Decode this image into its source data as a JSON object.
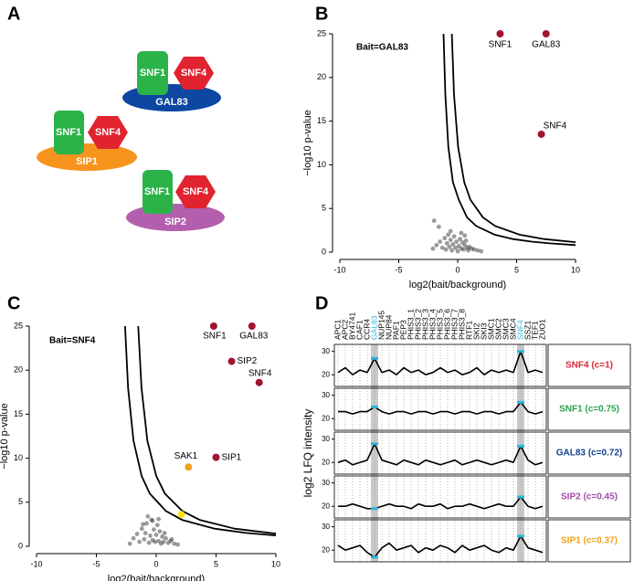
{
  "panel_labels": [
    "A",
    "B",
    "C",
    "D"
  ],
  "diagram": {
    "complexes": [
      {
        "subunits": [
          "SNF1",
          "SNF4"
        ],
        "scaffold": "GAL83"
      },
      {
        "subunits": [
          "SNF1",
          "SNF4"
        ],
        "scaffold": "SIP1"
      },
      {
        "subunits": [
          "SNF1",
          "SNF4"
        ],
        "scaffold": "SIP2"
      }
    ]
  },
  "chart_data": [
    {
      "type": "scatter",
      "annotation": "Bait=GAL83",
      "xlabel": "log2(bait/background)",
      "ylabel": "−log10 p-value",
      "xlim": [
        -10,
        10
      ],
      "ylim": [
        0,
        25
      ],
      "xticks": [
        -10,
        -5,
        0,
        5,
        10
      ],
      "yticks": [
        0,
        5,
        10,
        15,
        20,
        25
      ],
      "background": {
        "color": "#222222",
        "x": [
          -2.1,
          -1.8,
          -1.5,
          -1.3,
          -1.1,
          -1.0,
          -0.9,
          -0.8,
          -0.7,
          -0.6,
          -0.5,
          -0.4,
          -0.3,
          -0.2,
          -0.1,
          0,
          0.1,
          0.2,
          0.3,
          0.4,
          0.5,
          0.6,
          0.7,
          0.8,
          0.9,
          1.0,
          1.2,
          1.4,
          1.7,
          2.0,
          -0.6,
          0.3,
          -1.6,
          -2.0,
          0.6
        ],
        "y": [
          0.4,
          0.8,
          1.2,
          0.5,
          1.6,
          0.3,
          1.0,
          2.0,
          0.6,
          1.4,
          0.2,
          0.9,
          1.8,
          0.5,
          1.2,
          0.1,
          0.7,
          1.5,
          0.4,
          1.1,
          0.3,
          0.8,
          1.3,
          0.5,
          0.2,
          0.6,
          0.4,
          0.3,
          0.2,
          0.1,
          2.4,
          2.2,
          2.9,
          3.6,
          1.9
        ]
      },
      "curve_color": "#000000",
      "curves": [
        {
          "x": [
            -1.2,
            -1.05,
            -0.79,
            -0.4,
            0.09,
            0.78,
            1.56,
            3.13,
            4.69,
            6.26,
            7.83,
            10
          ],
          "y": [
            25,
            18,
            12,
            8,
            6,
            4,
            3,
            2,
            1.5,
            1.2,
            1,
            0.81
          ]
        },
        {
          "x": [
            -0.5,
            -0.31,
            0.04,
            0.56,
            1.08,
            2.13,
            3.17,
            5.25,
            7.33,
            10
          ],
          "y": [
            25,
            18,
            12,
            8,
            6,
            4,
            3,
            2,
            1.5,
            1.14
          ]
        }
      ],
      "points": [
        {
          "label": "SNF1",
          "x": 3.6,
          "y": 25,
          "color": "#a3132f"
        },
        {
          "label": "GAL83",
          "x": 7.5,
          "y": 25,
          "color": "#a3132f"
        },
        {
          "label": "SNF4",
          "x": 7.1,
          "y": 13.5,
          "color": "#a3132f"
        }
      ]
    },
    {
      "type": "scatter",
      "annotation": "Bait=SNF4",
      "xlabel": "log2(bait/background)",
      "ylabel": "−log10 p-value",
      "xlim": [
        -10,
        10
      ],
      "ylim": [
        0,
        25
      ],
      "xticks": [
        -10,
        -5,
        0,
        5,
        10
      ],
      "yticks": [
        0,
        5,
        10,
        15,
        20,
        25
      ],
      "background": {
        "color": "#222222",
        "x": [
          -2.2,
          -1.9,
          -1.6,
          -1.4,
          -1.2,
          -1.0,
          -0.9,
          -0.8,
          -0.6,
          -0.5,
          -0.4,
          -0.3,
          -0.2,
          -0.1,
          0,
          0.1,
          0.2,
          0.3,
          0.4,
          0.5,
          0.6,
          0.8,
          1.0,
          1.2,
          1.5,
          1.8,
          -0.7,
          -0.3,
          0.2,
          -1.1,
          0.7,
          1.3
        ],
        "y": [
          0.3,
          0.9,
          1.4,
          0.5,
          2.0,
          0.8,
          1.5,
          2.6,
          0.4,
          1.2,
          3.0,
          0.7,
          1.9,
          0.5,
          1.3,
          2.4,
          0.6,
          1.7,
          0.3,
          1.1,
          0.5,
          0.9,
          0.4,
          0.6,
          0.3,
          0.2,
          3.4,
          2.9,
          3.1,
          2.5,
          1.5,
          0.8
        ]
      },
      "curve_color": "#000000",
      "curves": [
        {
          "x": [
            -2.6,
            -2.35,
            -1.9,
            -1.22,
            -0.54,
            0.81,
            2.17,
            4.88,
            7.58,
            10
          ],
          "y": [
            25,
            18,
            12,
            8,
            6,
            4,
            3,
            2,
            1.5,
            1.23
          ]
        },
        {
          "x": [
            -1.5,
            -1.23,
            -0.74,
            0,
            0.72,
            2.18,
            3.63,
            6.55,
            10
          ],
          "y": [
            25,
            18,
            12,
            8,
            6,
            4,
            3,
            2,
            1.43
          ]
        }
      ],
      "points": [
        {
          "label": "SNF1",
          "x": 4.8,
          "y": 25,
          "color": "#a3132f"
        },
        {
          "label": "GAL83",
          "x": 8.0,
          "y": 25,
          "color": "#a3132f"
        },
        {
          "label": "SIP2",
          "x": 6.3,
          "y": 21,
          "color": "#a3132f"
        },
        {
          "label": "SNF4",
          "x": 8.6,
          "y": 18.6,
          "color": "#a3132f"
        },
        {
          "label": "SAK1",
          "x": 2.7,
          "y": 9.0,
          "color": "#f0a020"
        },
        {
          "label": "SIP1",
          "x": 5.0,
          "y": 10.1,
          "color": "#a3132f"
        },
        {
          "label": null,
          "x": 2.1,
          "y": 3.6,
          "color": "#f5e21a"
        }
      ]
    },
    {
      "type": "line",
      "ylabel": "log2 LFQ intensity",
      "categories": [
        "APC1",
        "APC2",
        "BY4741",
        "CAF1",
        "CCR4",
        "GAL83",
        "NUP145",
        "NUP84",
        "PAF1",
        "PEP3",
        "PHIS3_1",
        "PHIS3_2",
        "PHIS3_3",
        "PHIS3_4",
        "PHIS3_5",
        "PHIS3_6",
        "PHIS3_7",
        "PHIS3_8",
        "RTF1",
        "SKI2",
        "SKI3",
        "SMC1",
        "SMC2",
        "SMC3",
        "SMC4",
        "SNF4",
        "SSZ1",
        "TEF1",
        "ZUO1"
      ],
      "highlight": [
        5,
        25
      ],
      "highlight_color": "#2bb7dc",
      "band_color": "#c9c9c9",
      "line_color": "#000000",
      "ylim": [
        15,
        33
      ],
      "yticks": [
        20,
        30
      ],
      "series": [
        {
          "name": "SNF4 (c=1)",
          "color": "#d62839",
          "values": [
            21,
            23,
            20,
            22,
            21,
            27,
            21,
            22,
            20,
            23,
            21,
            22,
            20,
            21,
            23,
            21,
            22,
            20,
            21,
            23,
            20,
            22,
            21,
            22,
            21,
            30,
            21,
            22,
            21
          ]
        },
        {
          "name": "SNF1 (c=0.75)",
          "color": "#2ca24a",
          "values": [
            23,
            23,
            22,
            23,
            23,
            25,
            23,
            22,
            23,
            23,
            22,
            23,
            23,
            22,
            23,
            23,
            22,
            23,
            23,
            22,
            23,
            23,
            22,
            23,
            23,
            27,
            23,
            22,
            23
          ]
        },
        {
          "name": "GAL83 (c=0.72)",
          "color": "#163f8c",
          "values": [
            20,
            21,
            19,
            20,
            21,
            28,
            21,
            20,
            19,
            21,
            20,
            19,
            21,
            20,
            19,
            20,
            21,
            19,
            20,
            21,
            20,
            19,
            20,
            21,
            20,
            27,
            21,
            19,
            20
          ]
        },
        {
          "name": "SIP2 (c=0.45)",
          "color": "#a54ca5",
          "values": [
            20,
            20,
            21,
            20,
            19,
            19,
            20,
            21,
            20,
            20,
            19,
            21,
            20,
            20,
            21,
            19,
            20,
            20,
            21,
            20,
            19,
            20,
            21,
            20,
            20,
            24,
            20,
            19,
            20
          ]
        },
        {
          "name": "SIP1 (c=0.37)",
          "color": "#f3a21f",
          "values": [
            22,
            20,
            21,
            22,
            19,
            17,
            21,
            23,
            20,
            21,
            22,
            19,
            21,
            20,
            22,
            21,
            19,
            22,
            20,
            21,
            22,
            20,
            19,
            21,
            20,
            26,
            21,
            20,
            19
          ]
        }
      ]
    }
  ]
}
